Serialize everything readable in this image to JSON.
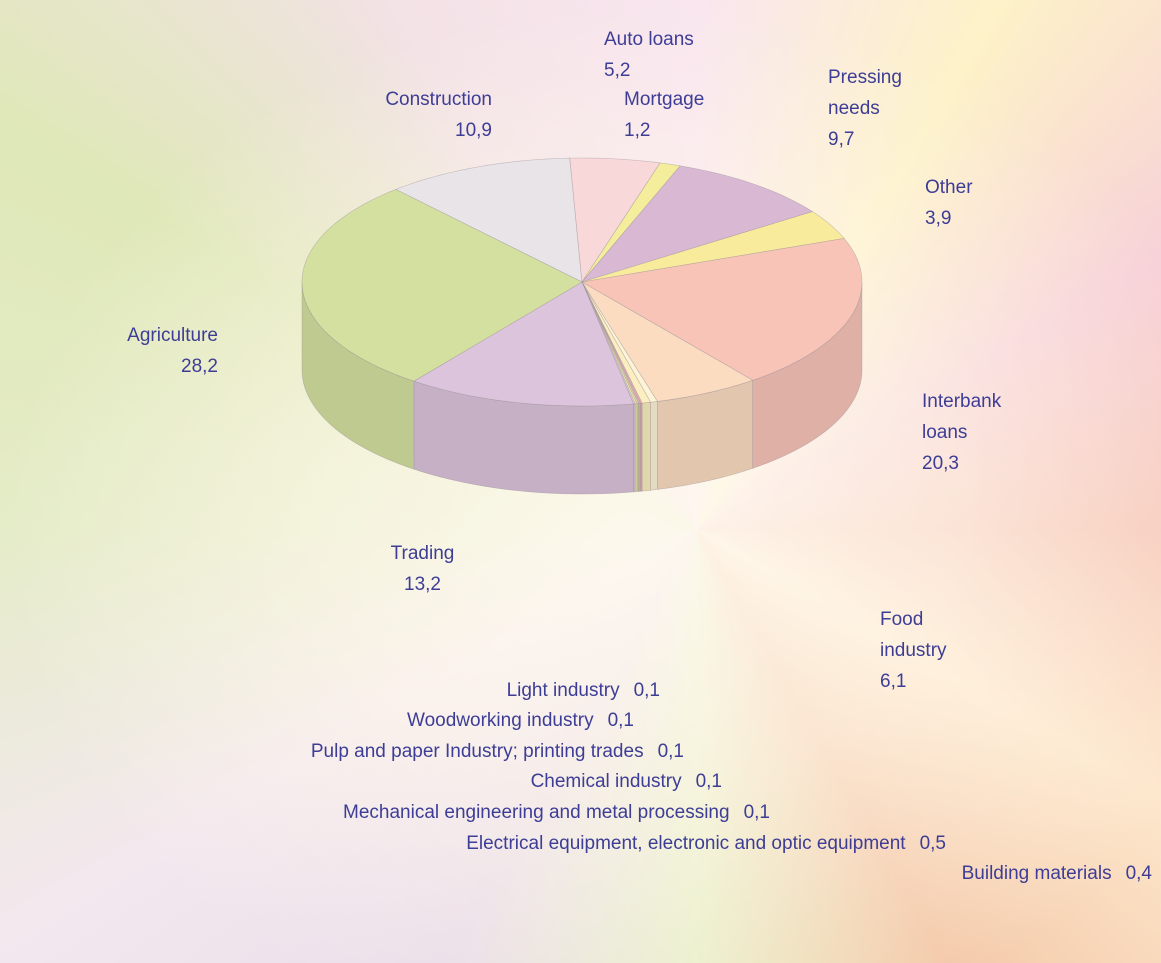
{
  "chart_data": {
    "type": "pie3d",
    "categories": [
      "Construction",
      "Auto loans",
      "Mortgage",
      "Pressing needs",
      "Other",
      "Interbank loans",
      "Food industry",
      "Building materials",
      "Electrical equipment, electronic and optic equipment",
      "Mechanical engineering and metal processing",
      "Chemical industry",
      "Pulp and paper Industry; printing trades",
      "Woodworking industry",
      "Light industry",
      "Trading",
      "Agriculture"
    ],
    "values": [
      10.9,
      5.2,
      1.2,
      9.7,
      3.9,
      20.3,
      6.1,
      0.4,
      0.5,
      0.1,
      0.1,
      0.1,
      0.1,
      0.1,
      13.2,
      28.2
    ],
    "value_labels": [
      "10,9",
      "5,2",
      "1,2",
      "9,7",
      "3,9",
      "20,3",
      "6,1",
      "0,4",
      "0,5",
      "0,1",
      "0,1",
      "0,1",
      "0,1",
      "0,1",
      "13,2",
      "28,2"
    ],
    "colors": [
      "#e9e4e8",
      "#f8d8d8",
      "#f4ee9c",
      "#d9b8d4",
      "#f8ec9c",
      "#f8c4b8",
      "#fbdcc0",
      "#fdf4d8",
      "#fbeec0",
      "#f0b0ac",
      "#e4b0c4",
      "#d8e0a0",
      "#f4f0a8",
      "#e0c8d8",
      "#dcc4dc",
      "#d4e0a0"
    ]
  }
}
